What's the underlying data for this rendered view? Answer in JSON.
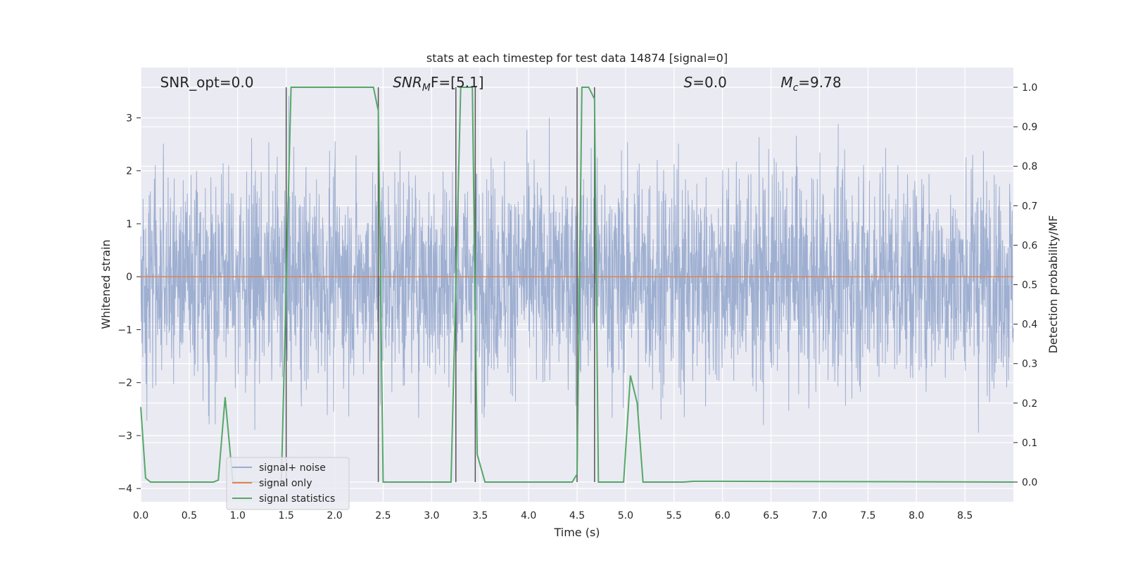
{
  "chart_data": {
    "type": "line",
    "title": "stats at each timestep for test data 14874 [signal=0]",
    "xlabel": "Time (s)",
    "ylabel_left": "Whitened strain",
    "ylabel_right": "Detection probability/MF",
    "xlim": [
      0.0,
      9.0
    ],
    "ylim_left": [
      -4.25,
      3.95
    ],
    "ylim_right": [
      -0.05,
      1.05
    ],
    "x_ticks": [
      "0.0",
      "0.5",
      "1.0",
      "1.5",
      "2.0",
      "2.5",
      "3.0",
      "3.5",
      "4.0",
      "4.5",
      "5.0",
      "5.5",
      "6.0",
      "6.5",
      "7.0",
      "7.5",
      "8.0",
      "8.5"
    ],
    "y_left_ticks": [
      "−4",
      "−3",
      "−2",
      "−1",
      "0",
      "1",
      "2",
      "3"
    ],
    "y_right_ticks": [
      "0.0",
      "0.1",
      "0.2",
      "0.3",
      "0.4",
      "0.5",
      "0.6",
      "0.7",
      "0.8",
      "0.9",
      "1.0"
    ],
    "grid": true,
    "legend_position": "lower-left",
    "annotations": [
      {
        "text": "SNR_opt=0.0",
        "x": 0.2
      },
      {
        "text": "SNRMF=[5.1]",
        "x": 2.6,
        "main": "SNR",
        "sub": "M",
        "tail": "F=[5.1]"
      },
      {
        "text": "S=0.0",
        "x": 5.6,
        "main": "S",
        "tail": "=0.0"
      },
      {
        "text": "Mc=9.78",
        "x": 6.6,
        "main": "M",
        "sub": "c",
        "tail": "=9.78"
      }
    ],
    "series": [
      {
        "name": "signal+ noise",
        "axis": "left",
        "color": "#9aaccf",
        "noise_sigma": 1.0,
        "range": [
          -4.0,
          3.6
        ]
      },
      {
        "name": "signal only",
        "axis": "left",
        "color": "#dd8452",
        "x": [
          0.0,
          9.0
        ],
        "y": [
          0.0,
          0.0
        ]
      },
      {
        "name": "signal statistics",
        "axis": "right",
        "color": "#55a868",
        "x": [
          0.0,
          0.05,
          0.1,
          0.75,
          0.8,
          0.87,
          0.95,
          1.0,
          1.45,
          1.5,
          1.55,
          2.4,
          2.45,
          2.5,
          3.0,
          3.2,
          3.25,
          3.3,
          3.42,
          3.47,
          3.55,
          4.45,
          4.5,
          4.55,
          4.62,
          4.68,
          4.72,
          4.98,
          5.05,
          5.12,
          5.18,
          5.6,
          5.7,
          9.0
        ],
        "y": [
          0.19,
          0.01,
          0.0,
          0.0,
          0.005,
          0.215,
          0.0,
          0.0,
          0.0,
          0.5,
          1.0,
          1.0,
          0.94,
          0.0,
          0.0,
          0.0,
          0.5,
          1.0,
          1.0,
          0.07,
          0.0,
          0.0,
          0.02,
          1.0,
          1.0,
          0.97,
          0.0,
          0.0,
          0.27,
          0.2,
          0.0,
          0.0,
          0.002,
          0.0
        ]
      }
    ],
    "vlines": [
      1.5,
      2.45,
      3.25,
      3.45,
      4.5,
      4.68
    ]
  }
}
